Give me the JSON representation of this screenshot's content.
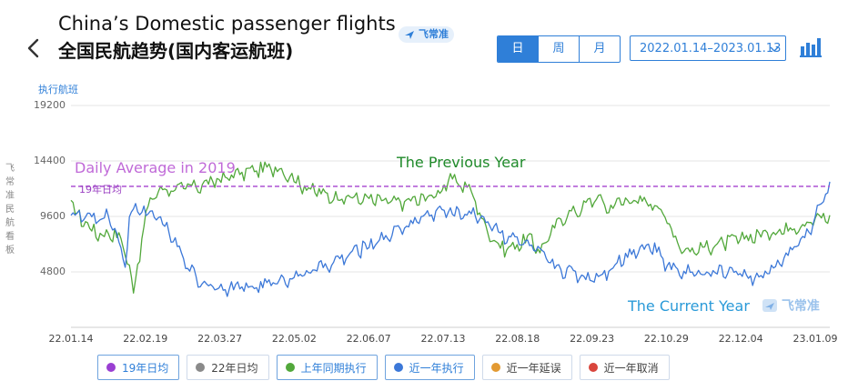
{
  "header": {
    "title_en": "China’s Domestic passenger flights",
    "title_cn": "全国民航趋势(国内客运航班)",
    "brand_badge": "飞常准"
  },
  "toolbar": {
    "granularity": [
      {
        "label": "日",
        "active": true
      },
      {
        "label": "周",
        "active": false
      },
      {
        "label": "月",
        "active": false
      }
    ],
    "date_range": "2022.01.14–2023.01.13",
    "accent_color": "#2f7fd8"
  },
  "side_label": "飞常准民航看板",
  "watermark": "飞常准",
  "annotations": {
    "daily_avg": "Daily Average in 2019",
    "previous_year": "The Previous Year",
    "current_year": "The Current Year",
    "avg_tag": "19年日均"
  },
  "legend": [
    {
      "label": "19年日均",
      "color": "#9a3fd2",
      "on": true
    },
    {
      "label": "22年日均",
      "color": "#8a8a8a",
      "on": false
    },
    {
      "label": "上年同期执行",
      "color": "#52a83b",
      "on": true
    },
    {
      "label": "近一年执行",
      "color": "#3c78d8",
      "on": true
    },
    {
      "label": "近一年延误",
      "color": "#e39a32",
      "on": false
    },
    {
      "label": "近一年取消",
      "color": "#d9453c",
      "on": false
    }
  ],
  "chart_data": {
    "type": "line",
    "ylabel": "执行航班",
    "ylim": [
      0,
      19200
    ],
    "yticks": [
      "19200",
      "14400",
      "9600",
      "4800"
    ],
    "ytick_values": [
      19200,
      14400,
      9600,
      4800
    ],
    "xticks": [
      "22.01.14",
      "22.02.19",
      "22.03.27",
      "22.05.02",
      "22.06.07",
      "22.07.13",
      "22.08.18",
      "22.09.23",
      "22.10.29",
      "22.12.04",
      "23.01.09"
    ],
    "x_range": [
      "22.01.14",
      "23.01.13"
    ],
    "grid": true,
    "reference": {
      "name": "19年日均",
      "value": 12200,
      "color": "#b35fd6"
    },
    "series": [
      {
        "name": "上年同期执行",
        "color": "#52a83b",
        "days": [
          0,
          8,
          14,
          20,
          24,
          27,
          30,
          33,
          36,
          40,
          46,
          52,
          60,
          70,
          80,
          90,
          100,
          108,
          114,
          118,
          122,
          128,
          136,
          146,
          156,
          166,
          176,
          182,
          186,
          190,
          194,
          198,
          206,
          212,
          216,
          220,
          225,
          230,
          236,
          244,
          252,
          258,
          264,
          270,
          276,
          282,
          288,
          294,
          300,
          306,
          312,
          320,
          330,
          340,
          350,
          358,
          364
        ],
        "values": [
          10500,
          8800,
          8000,
          8200,
          7600,
          6000,
          3200,
          6500,
          9800,
          11600,
          12000,
          12000,
          12200,
          12700,
          13300,
          13700,
          13800,
          12700,
          12000,
          11800,
          11400,
          11300,
          11200,
          11000,
          10800,
          11000,
          11600,
          12800,
          12500,
          12200,
          11000,
          8900,
          6900,
          6900,
          7400,
          7700,
          6600,
          8100,
          9600,
          10200,
          11300,
          10300,
          11000,
          11000,
          10800,
          10600,
          8400,
          6700,
          6700,
          7000,
          7300,
          7600,
          8000,
          8400,
          8900,
          9400,
          9700
        ]
      },
      {
        "name": "近一年执行",
        "color": "#3c78d8",
        "days": [
          0,
          6,
          12,
          18,
          22,
          26,
          28,
          30,
          34,
          38,
          44,
          50,
          56,
          62,
          68,
          72,
          78,
          84,
          90,
          96,
          102,
          108,
          114,
          120,
          130,
          140,
          150,
          160,
          168,
          176,
          184,
          192,
          200,
          208,
          216,
          224,
          232,
          240,
          248,
          256,
          262,
          266,
          270,
          274,
          280,
          286,
          292,
          300,
          308,
          316,
          324,
          332,
          340,
          348,
          354,
          358,
          362,
          364
        ],
        "values": [
          9900,
          9500,
          9300,
          9800,
          7600,
          5600,
          9600,
          10100,
          10300,
          9600,
          9200,
          7200,
          5400,
          3900,
          3700,
          3500,
          3500,
          3400,
          3600,
          3800,
          4200,
          4400,
          4800,
          5200,
          5900,
          6900,
          7800,
          8700,
          9500,
          10100,
          9900,
          9900,
          9200,
          8000,
          7400,
          6500,
          5300,
          4800,
          4300,
          4700,
          5700,
          6100,
          6700,
          7000,
          6900,
          5300,
          5000,
          4800,
          4800,
          4900,
          4500,
          4200,
          5700,
          7000,
          8300,
          10000,
          11500,
          12600
        ]
      }
    ]
  }
}
